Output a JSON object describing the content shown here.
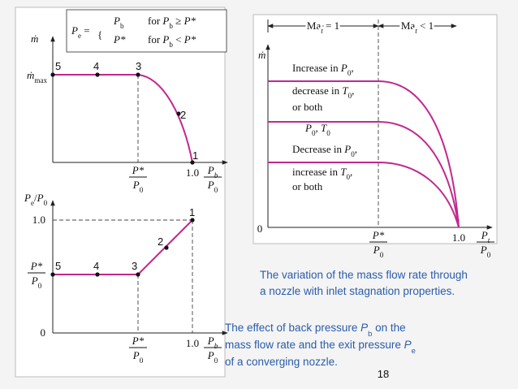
{
  "formula": {
    "lhs": [
      "P",
      "e",
      " ="
    ],
    "cases": [
      {
        "value": [
          "P",
          "b"
        ],
        "condition": [
          "for ",
          "P",
          "b",
          " ≥ ",
          "P*"
        ]
      },
      {
        "value": [
          "P*"
        ],
        "condition": [
          "for ",
          "P",
          "b",
          " < ",
          "P*"
        ]
      }
    ]
  },
  "top_chart": {
    "y_label": "ṁ",
    "y_max_label": [
      "ṁ",
      "max"
    ],
    "point_labels": [
      "5",
      "4",
      "3",
      "2",
      "1"
    ],
    "x_critical_label": {
      "numerator": [
        "P*"
      ],
      "denominator": [
        "P",
        "0"
      ]
    },
    "x_one_label": "1.0",
    "x_axis_label": {
      "numerator": [
        "P",
        "b"
      ],
      "denominator": [
        "P",
        "0"
      ]
    }
  },
  "bottom_chart": {
    "y_label": [
      "P",
      "e",
      "/",
      "P",
      "0"
    ],
    "y_one_label": "1.0",
    "y_critical_label": {
      "numerator": [
        "P*"
      ],
      "denominator": [
        "P",
        "0"
      ]
    },
    "y_zero_label": "0",
    "point_labels": [
      "5",
      "4",
      "3",
      "2",
      "1"
    ],
    "x_critical_label": {
      "numerator": [
        "P*"
      ],
      "denominator": [
        "P",
        "0"
      ]
    },
    "x_one_label": "1.0",
    "x_axis_label": {
      "numerator": [
        "P",
        "b"
      ],
      "denominator": [
        "P",
        "0"
      ]
    }
  },
  "right_chart": {
    "regions": [
      [
        "Ma",
        "t",
        " = 1"
      ],
      [
        "Ma",
        "t",
        " < 1"
      ]
    ],
    "y_label": "ṁ",
    "curve_labels": [
      [
        [
          "Increase in ",
          "P",
          "0",
          ","
        ],
        [
          "decrease in ",
          "T",
          "0",
          ","
        ],
        [
          "or both"
        ]
      ],
      [
        [
          "P",
          "0",
          ", ",
          "T",
          "0"
        ]
      ],
      [
        [
          "Decrease in ",
          "P",
          "0",
          ","
        ],
        [
          "increase in ",
          "T",
          "0",
          ","
        ],
        [
          "or both"
        ]
      ]
    ],
    "y_zero_label": "0",
    "x_critical_label": {
      "numerator": [
        "P*"
      ],
      "denominator": [
        "P",
        "0"
      ]
    },
    "x_one_label": "1.0",
    "x_axis_label": {
      "numerator": [
        "P",
        "t"
      ],
      "denominator": [
        "P",
        "0"
      ]
    }
  },
  "captions": {
    "mass_flow_variation": [
      "The variation of the mass flow rate through",
      "a nozzle with inlet stagnation properties."
    ],
    "back_pressure_effect": [
      [
        "The effect of back pressure ",
        "P",
        "b",
        " on the"
      ],
      [
        "mass flow rate and the exit pressure ",
        "P",
        "e"
      ],
      [
        "of a converging nozzle."
      ]
    ]
  },
  "page_number": "18"
}
